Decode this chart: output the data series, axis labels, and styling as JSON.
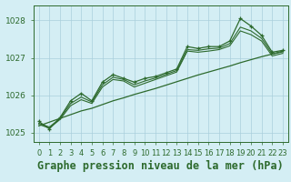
{
  "title": "Graphe pression niveau de la mer (hPa)",
  "x_labels": [
    "0",
    "1",
    "2",
    "3",
    "4",
    "5",
    "6",
    "7",
    "8",
    "9",
    "10",
    "11",
    "12",
    "13",
    "14",
    "15",
    "16",
    "17",
    "18",
    "19",
    "20",
    "21",
    "22",
    "23"
  ],
  "x_values": [
    0,
    1,
    2,
    3,
    4,
    5,
    6,
    7,
    8,
    9,
    10,
    11,
    12,
    13,
    14,
    15,
    16,
    17,
    18,
    19,
    20,
    21,
    22,
    23
  ],
  "line_main": [
    1025.3,
    1025.1,
    1025.4,
    1025.85,
    1026.05,
    1025.85,
    1026.35,
    1026.55,
    1026.45,
    1026.35,
    1026.45,
    1026.5,
    1026.6,
    1026.7,
    1027.3,
    1027.25,
    1027.3,
    1027.3,
    1027.45,
    1028.05,
    1027.85,
    1027.6,
    1027.15,
    1027.2
  ],
  "line_smooth1": [
    1025.25,
    1025.15,
    1025.38,
    1025.78,
    1025.95,
    1025.82,
    1026.28,
    1026.48,
    1026.42,
    1026.28,
    1026.38,
    1026.46,
    1026.56,
    1026.66,
    1027.22,
    1027.2,
    1027.24,
    1027.26,
    1027.38,
    1027.82,
    1027.72,
    1027.52,
    1027.1,
    1027.16
  ],
  "line_smooth2": [
    1025.22,
    1025.12,
    1025.35,
    1025.72,
    1025.88,
    1025.78,
    1026.22,
    1026.42,
    1026.38,
    1026.22,
    1026.32,
    1026.42,
    1026.52,
    1026.62,
    1027.18,
    1027.15,
    1027.18,
    1027.22,
    1027.32,
    1027.72,
    1027.62,
    1027.45,
    1027.05,
    1027.12
  ],
  "trend": [
    1025.18,
    1025.28,
    1025.38,
    1025.48,
    1025.58,
    1025.65,
    1025.75,
    1025.85,
    1025.93,
    1026.02,
    1026.1,
    1026.18,
    1026.27,
    1026.36,
    1026.45,
    1026.54,
    1026.62,
    1026.7,
    1026.78,
    1026.87,
    1026.95,
    1027.03,
    1027.1,
    1027.18
  ],
  "line_color": "#2d6a2d",
  "bg_color": "#d4eef4",
  "grid_color": "#aacfdd",
  "ylim": [
    1024.75,
    1028.4
  ],
  "yticks": [
    1025,
    1026,
    1027,
    1028
  ],
  "title_fontsize": 8.5,
  "tick_fontsize": 6.5
}
